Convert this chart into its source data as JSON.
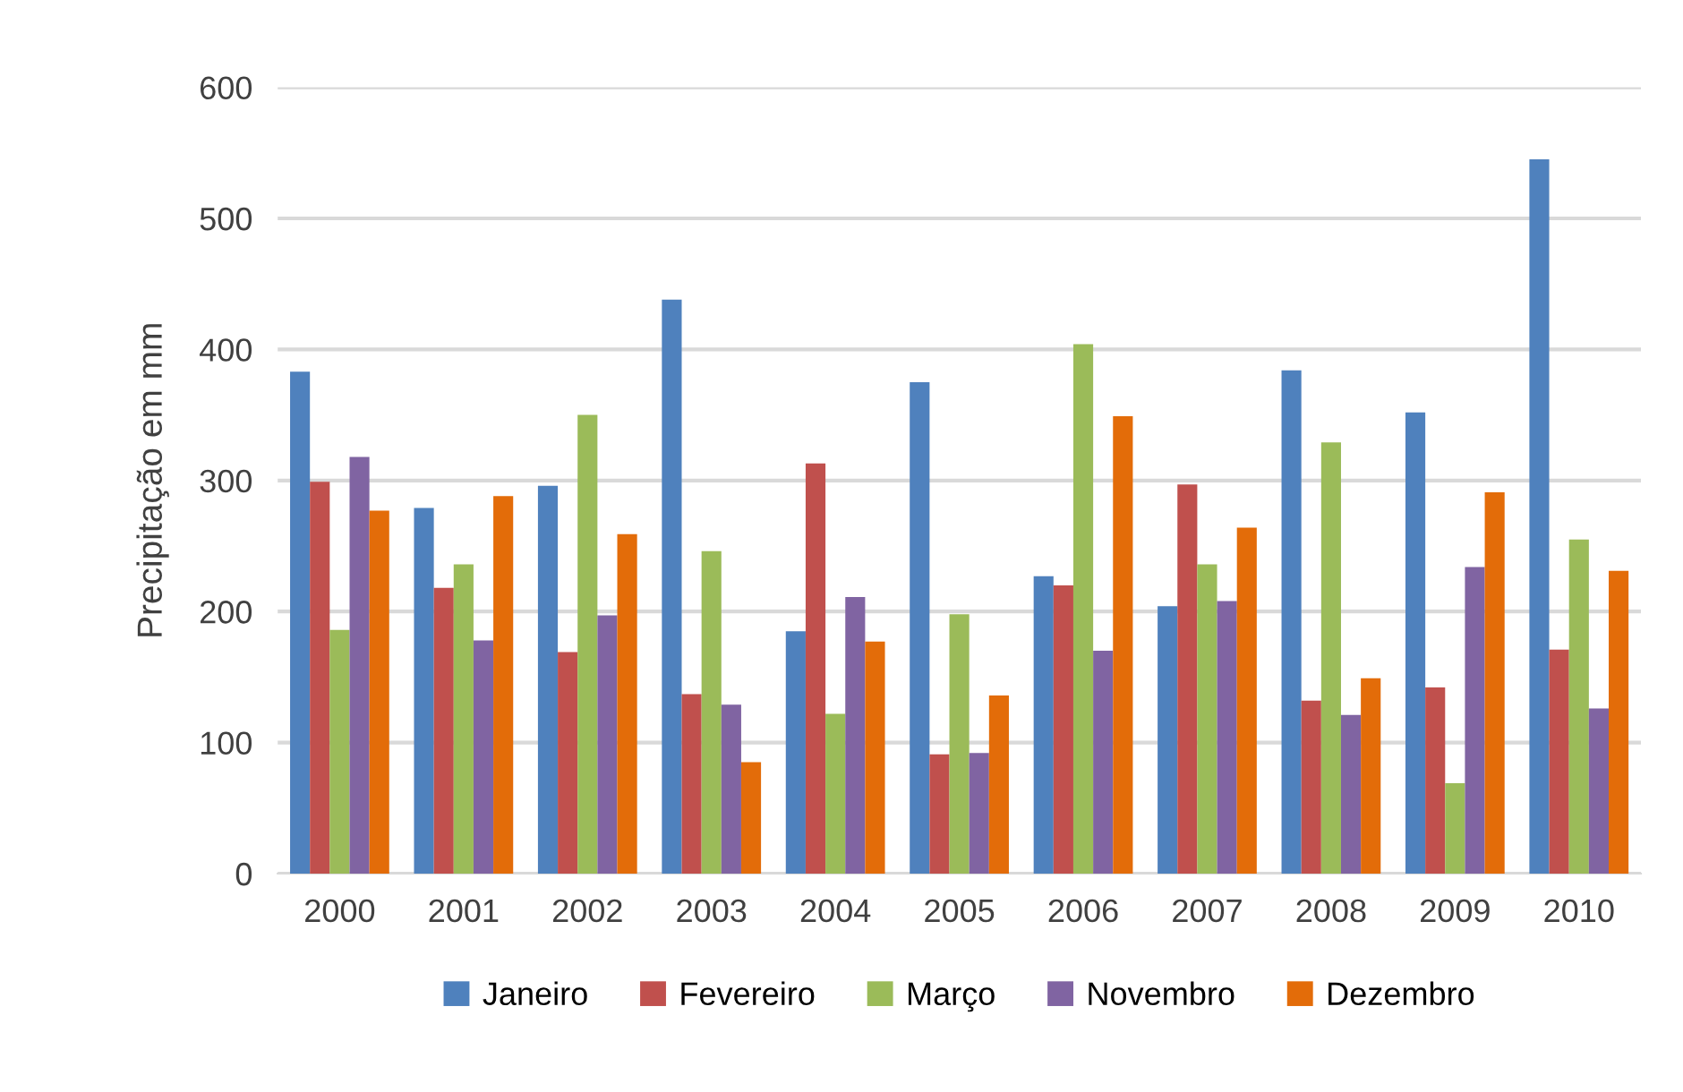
{
  "chart_data": {
    "type": "bar",
    "ylabel": "Precipitação em mm",
    "categories": [
      "2000",
      "2001",
      "2002",
      "2003",
      "2004",
      "2005",
      "2006",
      "2007",
      "2008",
      "2009",
      "2010"
    ],
    "series": [
      {
        "name": "Janeiro",
        "color": "#4f81bd",
        "values": [
          383,
          279,
          296,
          438,
          185,
          375,
          227,
          204,
          384,
          352,
          545
        ]
      },
      {
        "name": "Fevereiro",
        "color": "#c0504d",
        "values": [
          299,
          218,
          169,
          137,
          313,
          91,
          220,
          297,
          132,
          142,
          171
        ]
      },
      {
        "name": "Março",
        "color": "#9bbb59",
        "values": [
          186,
          236,
          350,
          246,
          122,
          198,
          404,
          236,
          329,
          69,
          255
        ]
      },
      {
        "name": "Novembro",
        "color": "#8064a2",
        "values": [
          318,
          178,
          197,
          129,
          211,
          92,
          170,
          208,
          121,
          234,
          126
        ]
      },
      {
        "name": "Dezembro",
        "color": "#e36c09",
        "values": [
          277,
          288,
          259,
          85,
          177,
          136,
          349,
          264,
          149,
          291,
          231
        ]
      }
    ],
    "ylim": [
      0,
      600
    ],
    "yticks": [
      0,
      100,
      200,
      300,
      400,
      500,
      600
    ],
    "grid": "y",
    "legend": "bottom"
  }
}
